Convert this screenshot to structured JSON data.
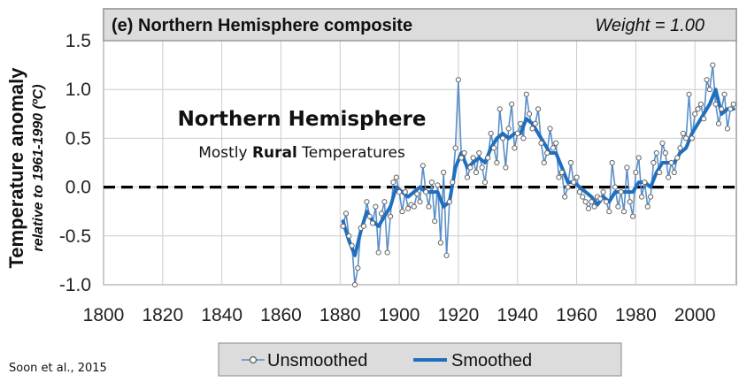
{
  "chart_data": {
    "type": "line",
    "panel_label": "(e) Northern Hemisphere composite",
    "weight_label": "Weight = 1.00",
    "ylabel": "Temperature anomaly",
    "ylabel_sub": "relative to 1961-1990 (ºC)",
    "overlay_title": "Northern Hemisphere",
    "overlay_subtitle_pre": "Mostly ",
    "overlay_subtitle_bold": "Rural",
    "overlay_subtitle_post": " Temperatures",
    "source": "Soon et al., 2015",
    "xlim": [
      1800,
      2014
    ],
    "ylim": [
      -1.0,
      1.5
    ],
    "x_ticks": [
      "1800",
      "1820",
      "1840",
      "1860",
      "1880",
      "1900",
      "1920",
      "1940",
      "1960",
      "1980",
      "2000"
    ],
    "y_ticks": [
      "1.5",
      "1.0",
      "0.5",
      "0.0",
      "-0.5",
      "-1.0"
    ],
    "grid": true,
    "legend_position": "bottom",
    "baseline": 0.0,
    "series": [
      {
        "name": "Unsmoothed",
        "color": "#5b8fc7",
        "x": [
          1881,
          1882,
          1883,
          1884,
          1885,
          1886,
          1887,
          1888,
          1889,
          1890,
          1891,
          1892,
          1893,
          1894,
          1895,
          1896,
          1897,
          1898,
          1899,
          1900,
          1901,
          1902,
          1903,
          1904,
          1905,
          1906,
          1907,
          1908,
          1909,
          1910,
          1911,
          1912,
          1913,
          1914,
          1915,
          1916,
          1917,
          1918,
          1919,
          1920,
          1921,
          1922,
          1923,
          1924,
          1925,
          1926,
          1927,
          1928,
          1929,
          1930,
          1931,
          1932,
          1933,
          1934,
          1935,
          1936,
          1937,
          1938,
          1939,
          1940,
          1941,
          1942,
          1943,
          1944,
          1945,
          1946,
          1947,
          1948,
          1949,
          1950,
          1951,
          1952,
          1953,
          1954,
          1955,
          1956,
          1957,
          1958,
          1959,
          1960,
          1961,
          1962,
          1963,
          1964,
          1965,
          1966,
          1967,
          1968,
          1969,
          1970,
          1971,
          1972,
          1973,
          1974,
          1975,
          1976,
          1977,
          1978,
          1979,
          1980,
          1981,
          1982,
          1983,
          1984,
          1985,
          1986,
          1987,
          1988,
          1989,
          1990,
          1991,
          1992,
          1993,
          1994,
          1995,
          1996,
          1997,
          1998,
          1999,
          2000,
          2001,
          2002,
          2003,
          2004,
          2005,
          2006,
          2007,
          2008,
          2009,
          2010,
          2011,
          2012,
          2013
        ],
        "values": [
          -0.4,
          -0.27,
          -0.5,
          -0.6,
          -1.0,
          -0.83,
          -0.42,
          -0.4,
          -0.15,
          -0.3,
          -0.37,
          -0.2,
          -0.67,
          -0.27,
          -0.15,
          -0.67,
          -0.3,
          0.05,
          0.1,
          -0.05,
          -0.25,
          -0.05,
          -0.22,
          -0.18,
          -0.2,
          -0.07,
          -0.15,
          0.22,
          -0.05,
          -0.2,
          0.05,
          -0.35,
          0.02,
          -0.57,
          0.15,
          -0.7,
          -0.15,
          0.05,
          0.4,
          1.1,
          0.3,
          0.35,
          0.1,
          0.2,
          0.3,
          0.15,
          0.35,
          0.2,
          0.05,
          0.3,
          0.55,
          0.4,
          0.25,
          0.8,
          0.5,
          0.2,
          0.6,
          0.85,
          0.4,
          0.55,
          0.65,
          0.5,
          0.95,
          0.75,
          0.6,
          0.65,
          0.8,
          0.45,
          0.25,
          0.35,
          0.6,
          0.4,
          0.45,
          0.1,
          0.15,
          -0.1,
          0.0,
          0.25,
          0.05,
          0.1,
          -0.05,
          -0.1,
          -0.15,
          -0.22,
          -0.15,
          -0.2,
          -0.1,
          -0.12,
          -0.05,
          -0.15,
          -0.25,
          0.25,
          0.0,
          -0.2,
          -0.05,
          -0.25,
          0.2,
          -0.15,
          -0.3,
          0.15,
          0.3,
          -0.1,
          0.05,
          -0.2,
          -0.1,
          0.25,
          0.35,
          0.15,
          0.45,
          0.35,
          0.1,
          0.25,
          0.15,
          0.3,
          0.4,
          0.55,
          0.5,
          0.95,
          0.5,
          0.75,
          0.8,
          0.85,
          0.7,
          1.1,
          1.0,
          1.25,
          0.85,
          0.65,
          0.8,
          0.95,
          0.6,
          0.8,
          0.85
        ]
      },
      {
        "name": "Smoothed",
        "color": "#1f6fc0",
        "x": [
          1881,
          1883,
          1885,
          1887,
          1889,
          1891,
          1893,
          1895,
          1897,
          1899,
          1901,
          1903,
          1905,
          1907,
          1909,
          1911,
          1913,
          1915,
          1917,
          1919,
          1921,
          1923,
          1925,
          1927,
          1929,
          1931,
          1933,
          1935,
          1937,
          1939,
          1941,
          1943,
          1945,
          1947,
          1949,
          1951,
          1953,
          1955,
          1957,
          1959,
          1961,
          1963,
          1965,
          1967,
          1969,
          1971,
          1973,
          1975,
          1977,
          1979,
          1981,
          1983,
          1985,
          1987,
          1989,
          1991,
          1993,
          1995,
          1997,
          1999,
          2001,
          2003,
          2005,
          2007,
          2009,
          2011,
          2013
        ],
        "values": [
          -0.35,
          -0.55,
          -0.7,
          -0.45,
          -0.25,
          -0.35,
          -0.4,
          -0.3,
          -0.2,
          0.0,
          -0.05,
          -0.1,
          -0.05,
          0.0,
          -0.05,
          -0.05,
          -0.05,
          -0.2,
          -0.15,
          0.2,
          0.35,
          0.2,
          0.25,
          0.3,
          0.25,
          0.4,
          0.5,
          0.55,
          0.5,
          0.55,
          0.55,
          0.7,
          0.65,
          0.55,
          0.45,
          0.35,
          0.35,
          0.2,
          0.05,
          0.05,
          0.0,
          -0.05,
          -0.1,
          -0.18,
          -0.1,
          -0.15,
          -0.05,
          -0.05,
          -0.05,
          -0.05,
          0.05,
          0.05,
          0.0,
          0.15,
          0.25,
          0.25,
          0.25,
          0.35,
          0.4,
          0.55,
          0.65,
          0.75,
          0.85,
          1.0,
          0.75,
          0.8,
          0.8
        ]
      }
    ]
  }
}
